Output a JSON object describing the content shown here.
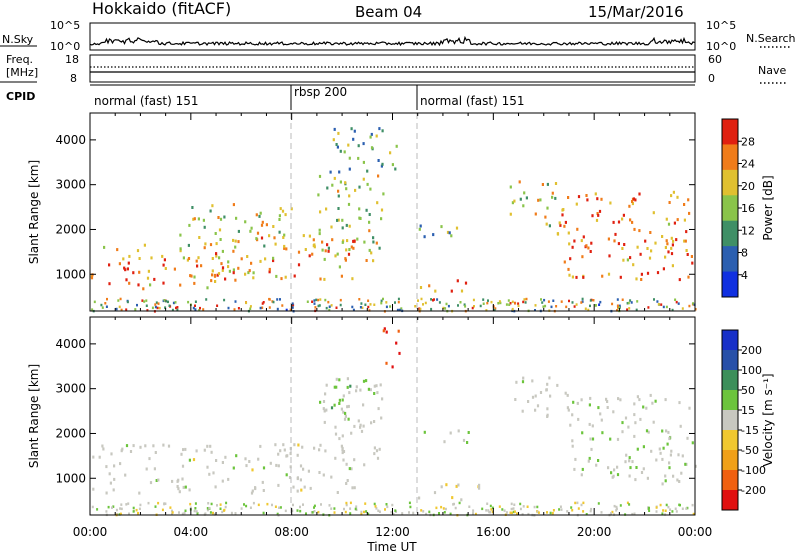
{
  "header": {
    "station": "Hokkaido (fitACF)",
    "beam": "Beam 04",
    "date": "15/Mar/2016"
  },
  "strips": {
    "nsky": {
      "label": "N.Sky",
      "ticks_left": [
        "10^5",
        "10^0"
      ],
      "ticks_right": [
        "10^5",
        "10^0"
      ],
      "right_label": "N.Search"
    },
    "freq": {
      "label_line1": "Freq.",
      "label_line2": "[MHz]",
      "ticks_left": [
        "18",
        "8"
      ],
      "ticks_right": [
        "60",
        "0"
      ],
      "right_label": "Nave"
    },
    "cpid": {
      "label": "CPID",
      "segments": [
        {
          "text": "normal (fast) 151",
          "start_hour": 0,
          "end_hour": 8
        },
        {
          "text": "rbsp 200",
          "start_hour": 8,
          "end_hour": 13
        },
        {
          "text": "normal (fast) 151",
          "start_hour": 13,
          "end_hour": 24
        }
      ]
    }
  },
  "chart_data": [
    {
      "type": "heatmap",
      "ylabel": "Slant Range [km]",
      "xlim": [
        0,
        24
      ],
      "ylim": [
        180,
        4600
      ],
      "yticks": [
        1000,
        2000,
        3000,
        4000
      ],
      "quantity": "Power",
      "colorbar": {
        "label": "Power [dB]",
        "ticks": [
          "28",
          "24",
          "20",
          "16",
          "12",
          "8",
          "4"
        ],
        "range": [
          0,
          30
        ],
        "colors": [
          "#1030e0",
          "#2b5fb0",
          "#3f8f66",
          "#8ac44a",
          "#e0c030",
          "#f07c1a",
          "#e02010"
        ]
      },
      "regions": [
        {
          "t0": 0.0,
          "t1": 6.0,
          "r0": 700,
          "r1": 1700,
          "value": 22
        },
        {
          "t0": 5.0,
          "t1": 10.5,
          "r0": 900,
          "r1": 2000,
          "value": 22
        },
        {
          "t0": 9.0,
          "t1": 11.6,
          "r0": 1300,
          "r1": 3300,
          "value": 16
        },
        {
          "t0": 3.5,
          "t1": 8.0,
          "r0": 1600,
          "r1": 2600,
          "value": 16
        },
        {
          "t0": 9.5,
          "t1": 12.3,
          "r0": 3300,
          "r1": 4400,
          "value": 12
        },
        {
          "t0": 13.0,
          "t1": 15.0,
          "r0": 600,
          "r1": 900,
          "value": 24
        },
        {
          "t0": 13.0,
          "t1": 15.0,
          "r0": 1800,
          "r1": 2200,
          "value": 12
        },
        {
          "t0": 16.5,
          "t1": 18.5,
          "r0": 2100,
          "r1": 3100,
          "value": 18
        },
        {
          "t0": 18.5,
          "t1": 24.0,
          "r0": 900,
          "r1": 2900,
          "value": 24
        }
      ]
    },
    {
      "type": "heatmap",
      "ylabel": "Slant Range [km]",
      "xlabel": "Time UT",
      "xlim": [
        0,
        24
      ],
      "ylim": [
        180,
        4600
      ],
      "yticks": [
        1000,
        2000,
        3000,
        4000
      ],
      "xticks": [
        "00:00",
        "04:00",
        "08:00",
        "12:00",
        "16:00",
        "20:00",
        "00:00"
      ],
      "quantity": "Velocity",
      "colorbar": {
        "label": "Velocity [m s⁻¹]",
        "ticks": [
          "200",
          "100",
          "50",
          "15",
          "-15",
          "-50",
          "-100",
          "-200"
        ],
        "range": [
          -250,
          250
        ],
        "colors": [
          "#e01010",
          "#f06010",
          "#f0a018",
          "#f0c830",
          "#c8c8c0",
          "#6cc43c",
          "#3c8f5a",
          "#2850a8",
          "#1830c8"
        ]
      },
      "regions": [
        {
          "t0": 0.0,
          "t1": 10.5,
          "r0": 700,
          "r1": 1800,
          "value": 0
        },
        {
          "t0": 9.0,
          "t1": 11.6,
          "r0": 1300,
          "r1": 3300,
          "value": 5
        },
        {
          "t0": 9.5,
          "t1": 10.5,
          "r0": 2300,
          "r1": 3300,
          "value": 60
        },
        {
          "t0": 11.5,
          "t1": 12.3,
          "r0": 3500,
          "r1": 4400,
          "value": -200
        },
        {
          "t0": 13.0,
          "t1": 15.5,
          "r0": 500,
          "r1": 900,
          "value": 0
        },
        {
          "t0": 13.0,
          "t1": 15.0,
          "r0": 1800,
          "r1": 2100,
          "value": 40
        },
        {
          "t0": 16.5,
          "t1": 19.0,
          "r0": 2400,
          "r1": 3300,
          "value": 0
        },
        {
          "t0": 19.0,
          "t1": 24.0,
          "r0": 900,
          "r1": 2900,
          "value": 10
        }
      ]
    }
  ],
  "time_axis": {
    "label": "Time UT",
    "ticks": [
      "00:00",
      "04:00",
      "08:00",
      "12:00",
      "16:00",
      "20:00",
      "00:00"
    ]
  }
}
